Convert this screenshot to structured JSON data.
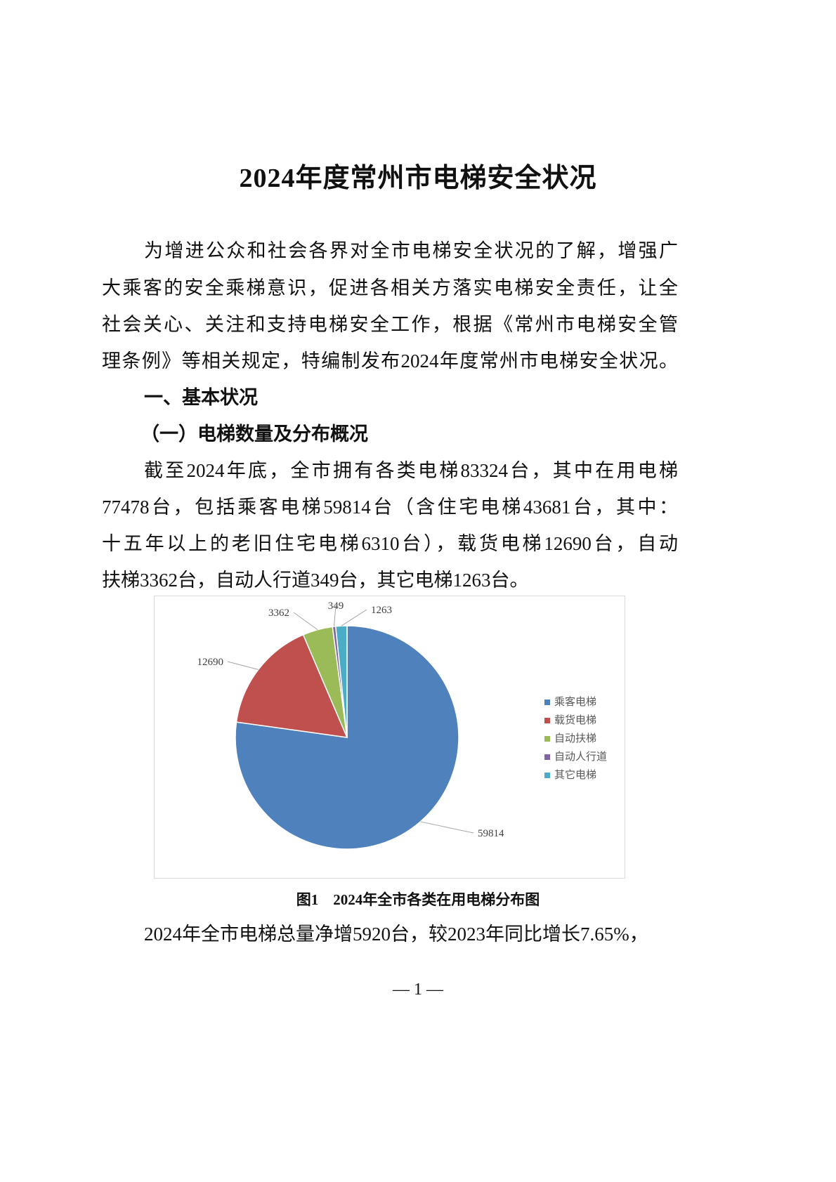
{
  "title": "2024年度常州市电梯安全状况",
  "intro_lines": [
    "为增进公众和社会各界对全市电梯安全状况的了解，增强广",
    "大乘客的安全乘梯意识，促进各相关方落实电梯安全责任，让全",
    "社会关心、关注和支持电梯安全工作，根据《常州市电梯安全管",
    "理条例》等相关规定，特编制发布2024年度常州市电梯安全状况。"
  ],
  "section1": "一、基本状况",
  "subsection1": "（一）电梯数量及分布概况",
  "para2_lines": [
    "截至2024年底，全市拥有各类电梯83324台，其中在用电梯",
    "77478台，包括乘客电梯59814台（含住宅电梯43681台，其中：",
    "十五年以上的老旧住宅电梯6310台），载货电梯12690台，自动",
    "扶梯3362台，自动人行道349台，其它电梯1263台。"
  ],
  "chart_data": {
    "type": "pie",
    "categories": [
      "乘客电梯",
      "载货电梯",
      "自动扶梯",
      "自动人行道",
      "其它电梯"
    ],
    "values": [
      59814,
      12690,
      3362,
      349,
      1263
    ],
    "data_labels": [
      "59814",
      "12690",
      "3362",
      "349",
      "1263"
    ],
    "colors": [
      "#4f81bd",
      "#c0504d",
      "#9bbb59",
      "#8064a2",
      "#4bacc6"
    ],
    "legend_position": "right",
    "start_angle": "top, clockwise"
  },
  "caption": "图1　2024年全市各类在用电梯分布图",
  "para3_line": "2024年全市电梯总量净增5920台，较2023年同比增长7.65%，",
  "footer": "— 1 —"
}
